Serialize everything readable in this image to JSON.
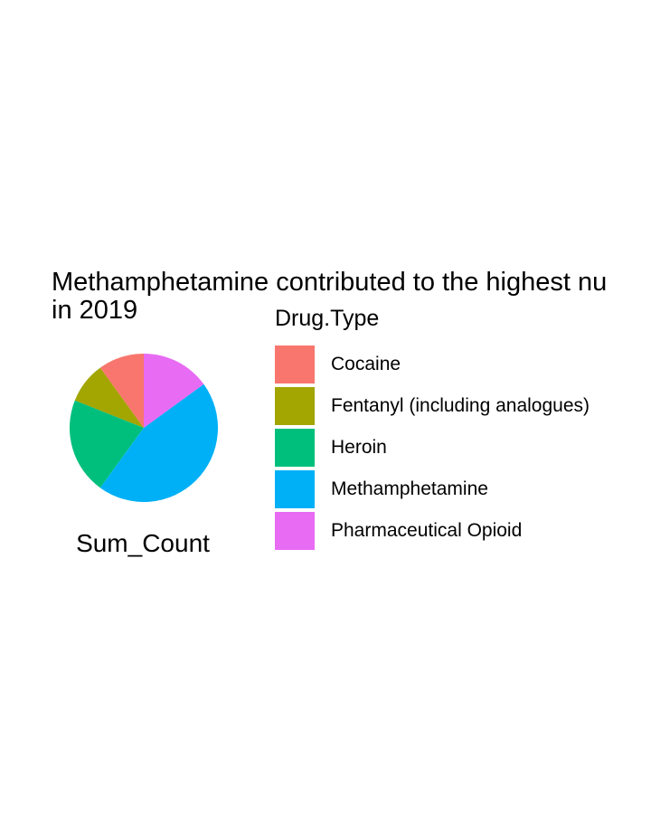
{
  "chart_data": {
    "type": "pie",
    "title_lines": [
      "Methamphetamine contributed to the highest nu",
      "in 2019"
    ],
    "xlabel": "Sum_Count",
    "legend_title": "Drug.Type",
    "legend_position": "right",
    "categories": [
      "Cocaine",
      "Fentanyl (including analogues)",
      "Heroin",
      "Methamphetamine",
      "Pharmaceutical Opioid"
    ],
    "values": [
      10,
      9,
      21,
      45,
      15
    ],
    "colors": [
      "#F8766D",
      "#A3A500",
      "#00BF7D",
      "#00B0F6",
      "#E76BF3"
    ]
  }
}
